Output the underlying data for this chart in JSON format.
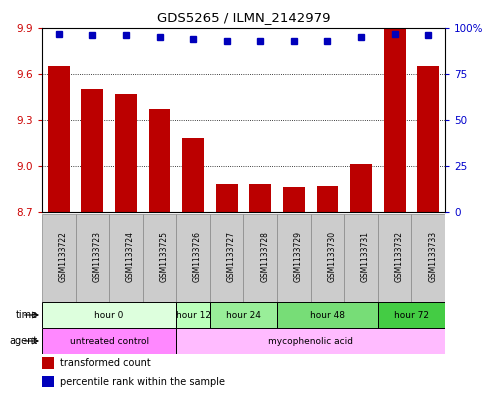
{
  "title": "GDS5265 / ILMN_2142979",
  "samples": [
    "GSM1133722",
    "GSM1133723",
    "GSM1133724",
    "GSM1133725",
    "GSM1133726",
    "GSM1133727",
    "GSM1133728",
    "GSM1133729",
    "GSM1133730",
    "GSM1133731",
    "GSM1133732",
    "GSM1133733"
  ],
  "bar_values": [
    9.65,
    9.5,
    9.47,
    9.37,
    9.18,
    8.88,
    8.88,
    8.86,
    8.87,
    9.01,
    9.9,
    9.65
  ],
  "percentile_values": [
    97,
    96,
    96,
    95,
    94,
    93,
    93,
    93,
    93,
    95,
    97,
    96
  ],
  "bar_color": "#bb0000",
  "percentile_color": "#0000bb",
  "ymin": 8.7,
  "ymax": 9.9,
  "yticks": [
    8.7,
    9.0,
    9.3,
    9.6,
    9.9
  ],
  "right_yticks": [
    0,
    25,
    50,
    75,
    100
  ],
  "right_yticklabels": [
    "0",
    "25",
    "50",
    "75",
    "100%"
  ],
  "time_groups": [
    {
      "label": "hour 0",
      "start": 0,
      "end": 4,
      "color": "#ddffdd"
    },
    {
      "label": "hour 12",
      "start": 4,
      "end": 5,
      "color": "#bbffbb"
    },
    {
      "label": "hour 24",
      "start": 5,
      "end": 7,
      "color": "#99ee99"
    },
    {
      "label": "hour 48",
      "start": 7,
      "end": 10,
      "color": "#77dd77"
    },
    {
      "label": "hour 72",
      "start": 10,
      "end": 12,
      "color": "#44cc44"
    }
  ],
  "agent_groups": [
    {
      "label": "untreated control",
      "start": 0,
      "end": 4,
      "color": "#ff88ff"
    },
    {
      "label": "mycophenolic acid",
      "start": 4,
      "end": 12,
      "color": "#ffbbff"
    }
  ],
  "legend_items": [
    {
      "label": "transformed count",
      "color": "#bb0000"
    },
    {
      "label": "percentile rank within the sample",
      "color": "#0000bb"
    }
  ],
  "background_color": "#ffffff",
  "plot_bg_color": "#ffffff",
  "grid_color": "#000000",
  "tick_label_color_left": "#cc0000",
  "tick_label_color_right": "#0000cc",
  "sample_box_color": "#cccccc",
  "n_samples": 12,
  "fig_width": 4.83,
  "fig_height": 3.93,
  "dpi": 100
}
